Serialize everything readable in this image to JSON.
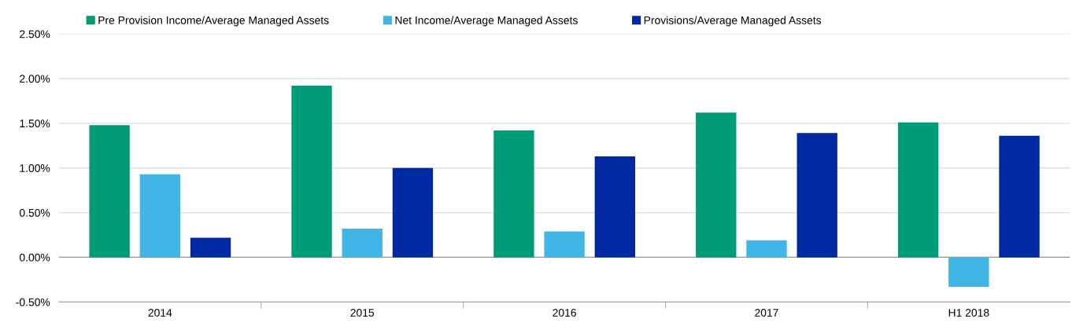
{
  "chart_data": {
    "type": "bar",
    "categories": [
      "2014",
      "2015",
      "2016",
      "2017",
      "H1 2018"
    ],
    "series": [
      {
        "name": "Pre Provision Income/Average Managed Assets",
        "color": "#009b77",
        "values": [
          1.48,
          1.92,
          1.42,
          1.62,
          1.51
        ]
      },
      {
        "name": "Net Income/Average Managed Assets",
        "color": "#41b6e6",
        "values": [
          0.93,
          0.32,
          0.29,
          0.19,
          -0.33
        ]
      },
      {
        "name": "Provisions/Average Managed Assets",
        "color": "#0028a0",
        "values": [
          0.22,
          1.0,
          1.13,
          1.39,
          1.36
        ]
      }
    ],
    "ylim": [
      -0.5,
      2.5
    ],
    "yticks": [
      {
        "value": -0.5,
        "label": "-0.50%"
      },
      {
        "value": 0,
        "label": "0.00%"
      },
      {
        "value": 0.5,
        "label": "0.50%"
      },
      {
        "value": 1.0,
        "label": "1.00%"
      },
      {
        "value": 1.5,
        "label": "1.50%"
      },
      {
        "value": 2.0,
        "label": "2.00%"
      },
      {
        "value": 2.5,
        "label": "2.50%"
      }
    ],
    "grid": "y",
    "legend": "top left"
  }
}
